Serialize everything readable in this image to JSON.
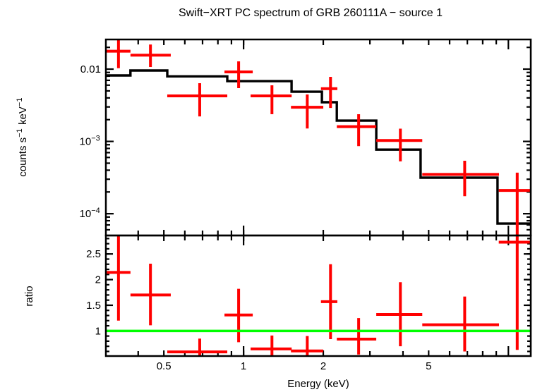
{
  "title": "Swift−XRT PC spectrum of GRB 260111A − source 1",
  "axes": {
    "x_label": "Energy (keV)",
    "y_label_top_parts": [
      {
        "t": "counts s"
      },
      {
        "sup": "−1"
      },
      {
        "t": " keV"
      },
      {
        "sup": "−1"
      }
    ],
    "y_label_bottom": "ratio"
  },
  "colors": {
    "data": "#ff0000",
    "model": "#000000",
    "reference": "#00ff00",
    "frame": "#000000",
    "background": "#ffffff"
  },
  "chart_data": {
    "type": "line",
    "subtype": "xspec-spectrum-with-ratio",
    "x_scale": "log",
    "xlim": [
      0.302,
      12.15
    ],
    "x_major_ticks": [
      0.5,
      1,
      2,
      5
    ],
    "x_tick_labels": [
      "0.5",
      "1",
      "2",
      "5"
    ],
    "x_minor_ticks": [
      0.4,
      0.6,
      0.7,
      0.8,
      0.9,
      3,
      4,
      6,
      7,
      8,
      9
    ],
    "x_decade_ticks": [
      1,
      10
    ],
    "panels": [
      {
        "name": "spectrum",
        "y_scale": "log",
        "ylim": [
          5e-05,
          0.0257
        ],
        "y_major_ticks": [
          0.01,
          0.001,
          0.0001
        ],
        "y_tick_label_parts": [
          [
            {
              "t": "0.01"
            }
          ],
          [
            {
              "t": "10"
            },
            {
              "sup": "−3"
            }
          ],
          [
            {
              "t": "10"
            },
            {
              "sup": "−4"
            }
          ]
        ],
        "series": [
          {
            "name": "data",
            "style": "cross-error-bars",
            "points": [
              {
                "e": 0.337,
                "e_lo": 0.302,
                "e_hi": 0.374,
                "y": 0.0177,
                "y_lo": 0.0103,
                "y_hi": 0.0256
              },
              {
                "e": 0.445,
                "e_lo": 0.374,
                "e_hi": 0.531,
                "y": 0.0156,
                "y_lo": 0.0107,
                "y_hi": 0.0219
              },
              {
                "e": 0.683,
                "e_lo": 0.515,
                "e_hi": 0.868,
                "y": 0.00426,
                "y_lo": 0.00222,
                "y_hi": 0.00638
              },
              {
                "e": 0.958,
                "e_lo": 0.847,
                "e_hi": 1.083,
                "y": 0.00914,
                "y_lo": 0.00546,
                "y_hi": 0.0128
              },
              {
                "e": 1.28,
                "e_lo": 1.063,
                "e_hi": 1.519,
                "y": 0.00426,
                "y_lo": 0.00238,
                "y_hi": 0.00597
              },
              {
                "e": 1.74,
                "e_lo": 1.51,
                "e_hi": 2.0,
                "y": 0.00297,
                "y_lo": 0.00151,
                "y_hi": 0.00446
              },
              {
                "e": 2.13,
                "e_lo": 1.96,
                "e_hi": 2.26,
                "y": 0.00537,
                "y_lo": 0.0029,
                "y_hi": 0.00781
              },
              {
                "e": 2.72,
                "e_lo": 2.25,
                "e_hi": 3.17,
                "y": 0.0016,
                "y_lo": 0.00086,
                "y_hi": 0.00238
              },
              {
                "e": 3.91,
                "e_lo": 3.17,
                "e_hi": 4.73,
                "y": 0.00103,
                "y_lo": 0.00053,
                "y_hi": 0.0015
              },
              {
                "e": 6.84,
                "e_lo": 4.73,
                "e_hi": 9.22,
                "y": 0.00035,
                "y_lo": 0.000175,
                "y_hi": 0.00054
              },
              {
                "e": 10.8,
                "e_lo": 9.2,
                "e_hi": 12.15,
                "y": 0.00021,
                "y_lo": 5.1e-05,
                "y_hi": 0.00037
              }
            ]
          },
          {
            "name": "model",
            "style": "step-line",
            "bins": [
              {
                "e_lo": 0.302,
                "e_hi": 0.374,
                "y": 0.00817
              },
              {
                "e_lo": 0.374,
                "e_hi": 0.515,
                "y": 0.00956
              },
              {
                "e_lo": 0.515,
                "e_hi": 0.868,
                "y": 0.00794
              },
              {
                "e_lo": 0.868,
                "e_hi": 1.518,
                "y": 0.00682
              },
              {
                "e_lo": 1.518,
                "e_hi": 1.977,
                "y": 0.00487
              },
              {
                "e_lo": 1.977,
                "e_hi": 2.25,
                "y": 0.00348
              },
              {
                "e_lo": 2.25,
                "e_hi": 3.17,
                "y": 0.00194
              },
              {
                "e_lo": 3.17,
                "e_hi": 4.66,
                "y": 0.00077
              },
              {
                "e_lo": 4.66,
                "e_hi": 9.1,
                "y": 0.000315
              },
              {
                "e_lo": 9.1,
                "e_hi": 12.15,
                "y": 7.3e-05
              }
            ]
          }
        ]
      },
      {
        "name": "ratio",
        "y_scale": "linear",
        "ylim": [
          0.51,
          2.86
        ],
        "y_major_ticks": [
          1,
          1.5,
          2,
          2.5
        ],
        "y_tick_labels": [
          "1",
          "1.5",
          "2",
          "2.5"
        ],
        "y_minor_tick_step": 0.1,
        "reference_line": {
          "y": 1
        },
        "points": [
          {
            "e": 0.337,
            "e_lo": 0.302,
            "e_hi": 0.374,
            "r": 2.14,
            "r_lo": 1.2,
            "r_hi": 2.86
          },
          {
            "e": 0.445,
            "e_lo": 0.374,
            "e_hi": 0.531,
            "r": 1.7,
            "r_lo": 1.11,
            "r_hi": 2.31
          },
          {
            "e": 0.683,
            "e_lo": 0.515,
            "e_hi": 0.868,
            "r": 0.59,
            "r_lo": 0.51,
            "r_hi": 0.85
          },
          {
            "e": 0.958,
            "e_lo": 0.847,
            "e_hi": 1.083,
            "r": 1.31,
            "r_lo": 0.78,
            "r_hi": 1.82
          },
          {
            "e": 1.28,
            "e_lo": 1.063,
            "e_hi": 1.519,
            "r": 0.65,
            "r_lo": 0.51,
            "r_hi": 0.91
          },
          {
            "e": 1.74,
            "e_lo": 1.51,
            "e_hi": 2.0,
            "r": 0.61,
            "r_lo": 0.51,
            "r_hi": 0.9
          },
          {
            "e": 2.13,
            "e_lo": 1.96,
            "e_hi": 2.26,
            "r": 1.57,
            "r_lo": 0.84,
            "r_hi": 2.3
          },
          {
            "e": 2.72,
            "e_lo": 2.25,
            "e_hi": 3.17,
            "r": 0.84,
            "r_lo": 0.54,
            "r_hi": 1.25
          },
          {
            "e": 3.91,
            "e_lo": 3.17,
            "e_hi": 4.73,
            "r": 1.32,
            "r_lo": 0.7,
            "r_hi": 1.95
          },
          {
            "e": 6.84,
            "e_lo": 4.73,
            "e_hi": 9.22,
            "r": 1.12,
            "r_lo": 0.6,
            "r_hi": 1.67
          },
          {
            "e": 10.8,
            "e_lo": 9.2,
            "e_hi": 12.15,
            "r": 2.73,
            "r_lo": 0.63,
            "r_hi": 2.86
          }
        ]
      }
    ]
  }
}
